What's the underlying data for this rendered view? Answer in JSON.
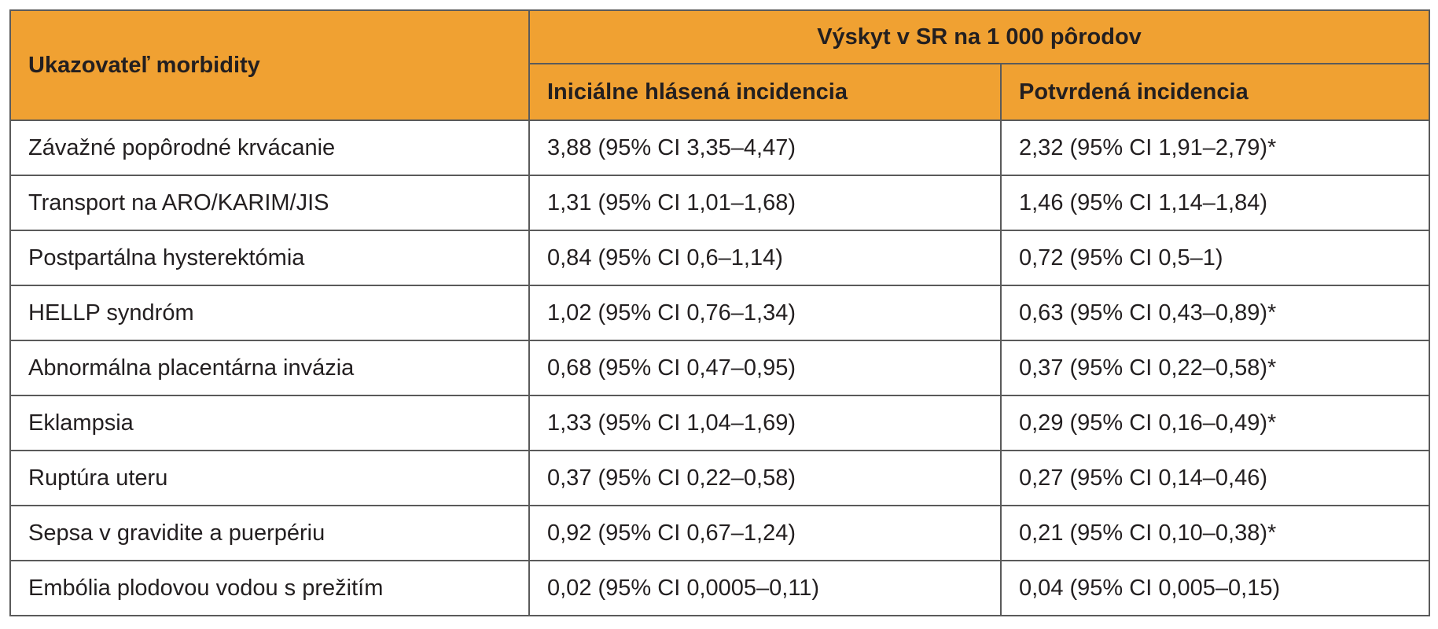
{
  "table": {
    "header": {
      "indicator": "Ukazovateľ morbidity",
      "group": "Výskyt v SR na 1 000 pôrodov",
      "col_initial": "Iniciálne hlásená incidencia",
      "col_confirmed": "Potvrdená incidencia"
    },
    "rows": [
      {
        "indicator": "Závažné popôrodné krvácanie",
        "initial": "3,88 (95% CI 3,35–4,47)",
        "confirmed": "2,32 (95% CI 1,91–2,79)*"
      },
      {
        "indicator": "Transport na ARO/KARIM/JIS",
        "initial": "1,31 (95% CI 1,01–1,68)",
        "confirmed": "1,46 (95% CI 1,14–1,84)"
      },
      {
        "indicator": "Postpartálna hysterektómia",
        "initial": "0,84 (95% CI 0,6–1,14)",
        "confirmed": "0,72 (95% CI 0,5–1)"
      },
      {
        "indicator": "HELLP syndróm",
        "initial": "1,02 (95% CI 0,76–1,34)",
        "confirmed": "0,63 (95% CI 0,43–0,89)*"
      },
      {
        "indicator": "Abnormálna placentárna invázia",
        "initial": "0,68 (95% CI 0,47–0,95)",
        "confirmed": "0,37 (95% CI 0,22–0,58)*"
      },
      {
        "indicator": "Eklampsia",
        "initial": "1,33 (95% CI 1,04–1,69)",
        "confirmed": "0,29 (95% CI 0,16–0,49)*"
      },
      {
        "indicator": "Ruptúra uteru",
        "initial": "0,37 (95% CI 0,22–0,58)",
        "confirmed": "0,27 (95% CI 0,14–0,46)"
      },
      {
        "indicator": "Sepsa v gravidite a puerpériu",
        "initial": "0,92 (95% CI 0,67–1,24)",
        "confirmed": "0,21 (95% CI 0,10–0,38)*"
      },
      {
        "indicator": "Embólia plodovou vodou s prežitím",
        "initial": "0,02 (95% CI 0,0005–0,11)",
        "confirmed": "0,04 (95% CI 0,005–0,15)"
      }
    ]
  },
  "colors": {
    "header_bg": "#f0a132",
    "border": "#5a5a5a",
    "text": "#231f20"
  }
}
